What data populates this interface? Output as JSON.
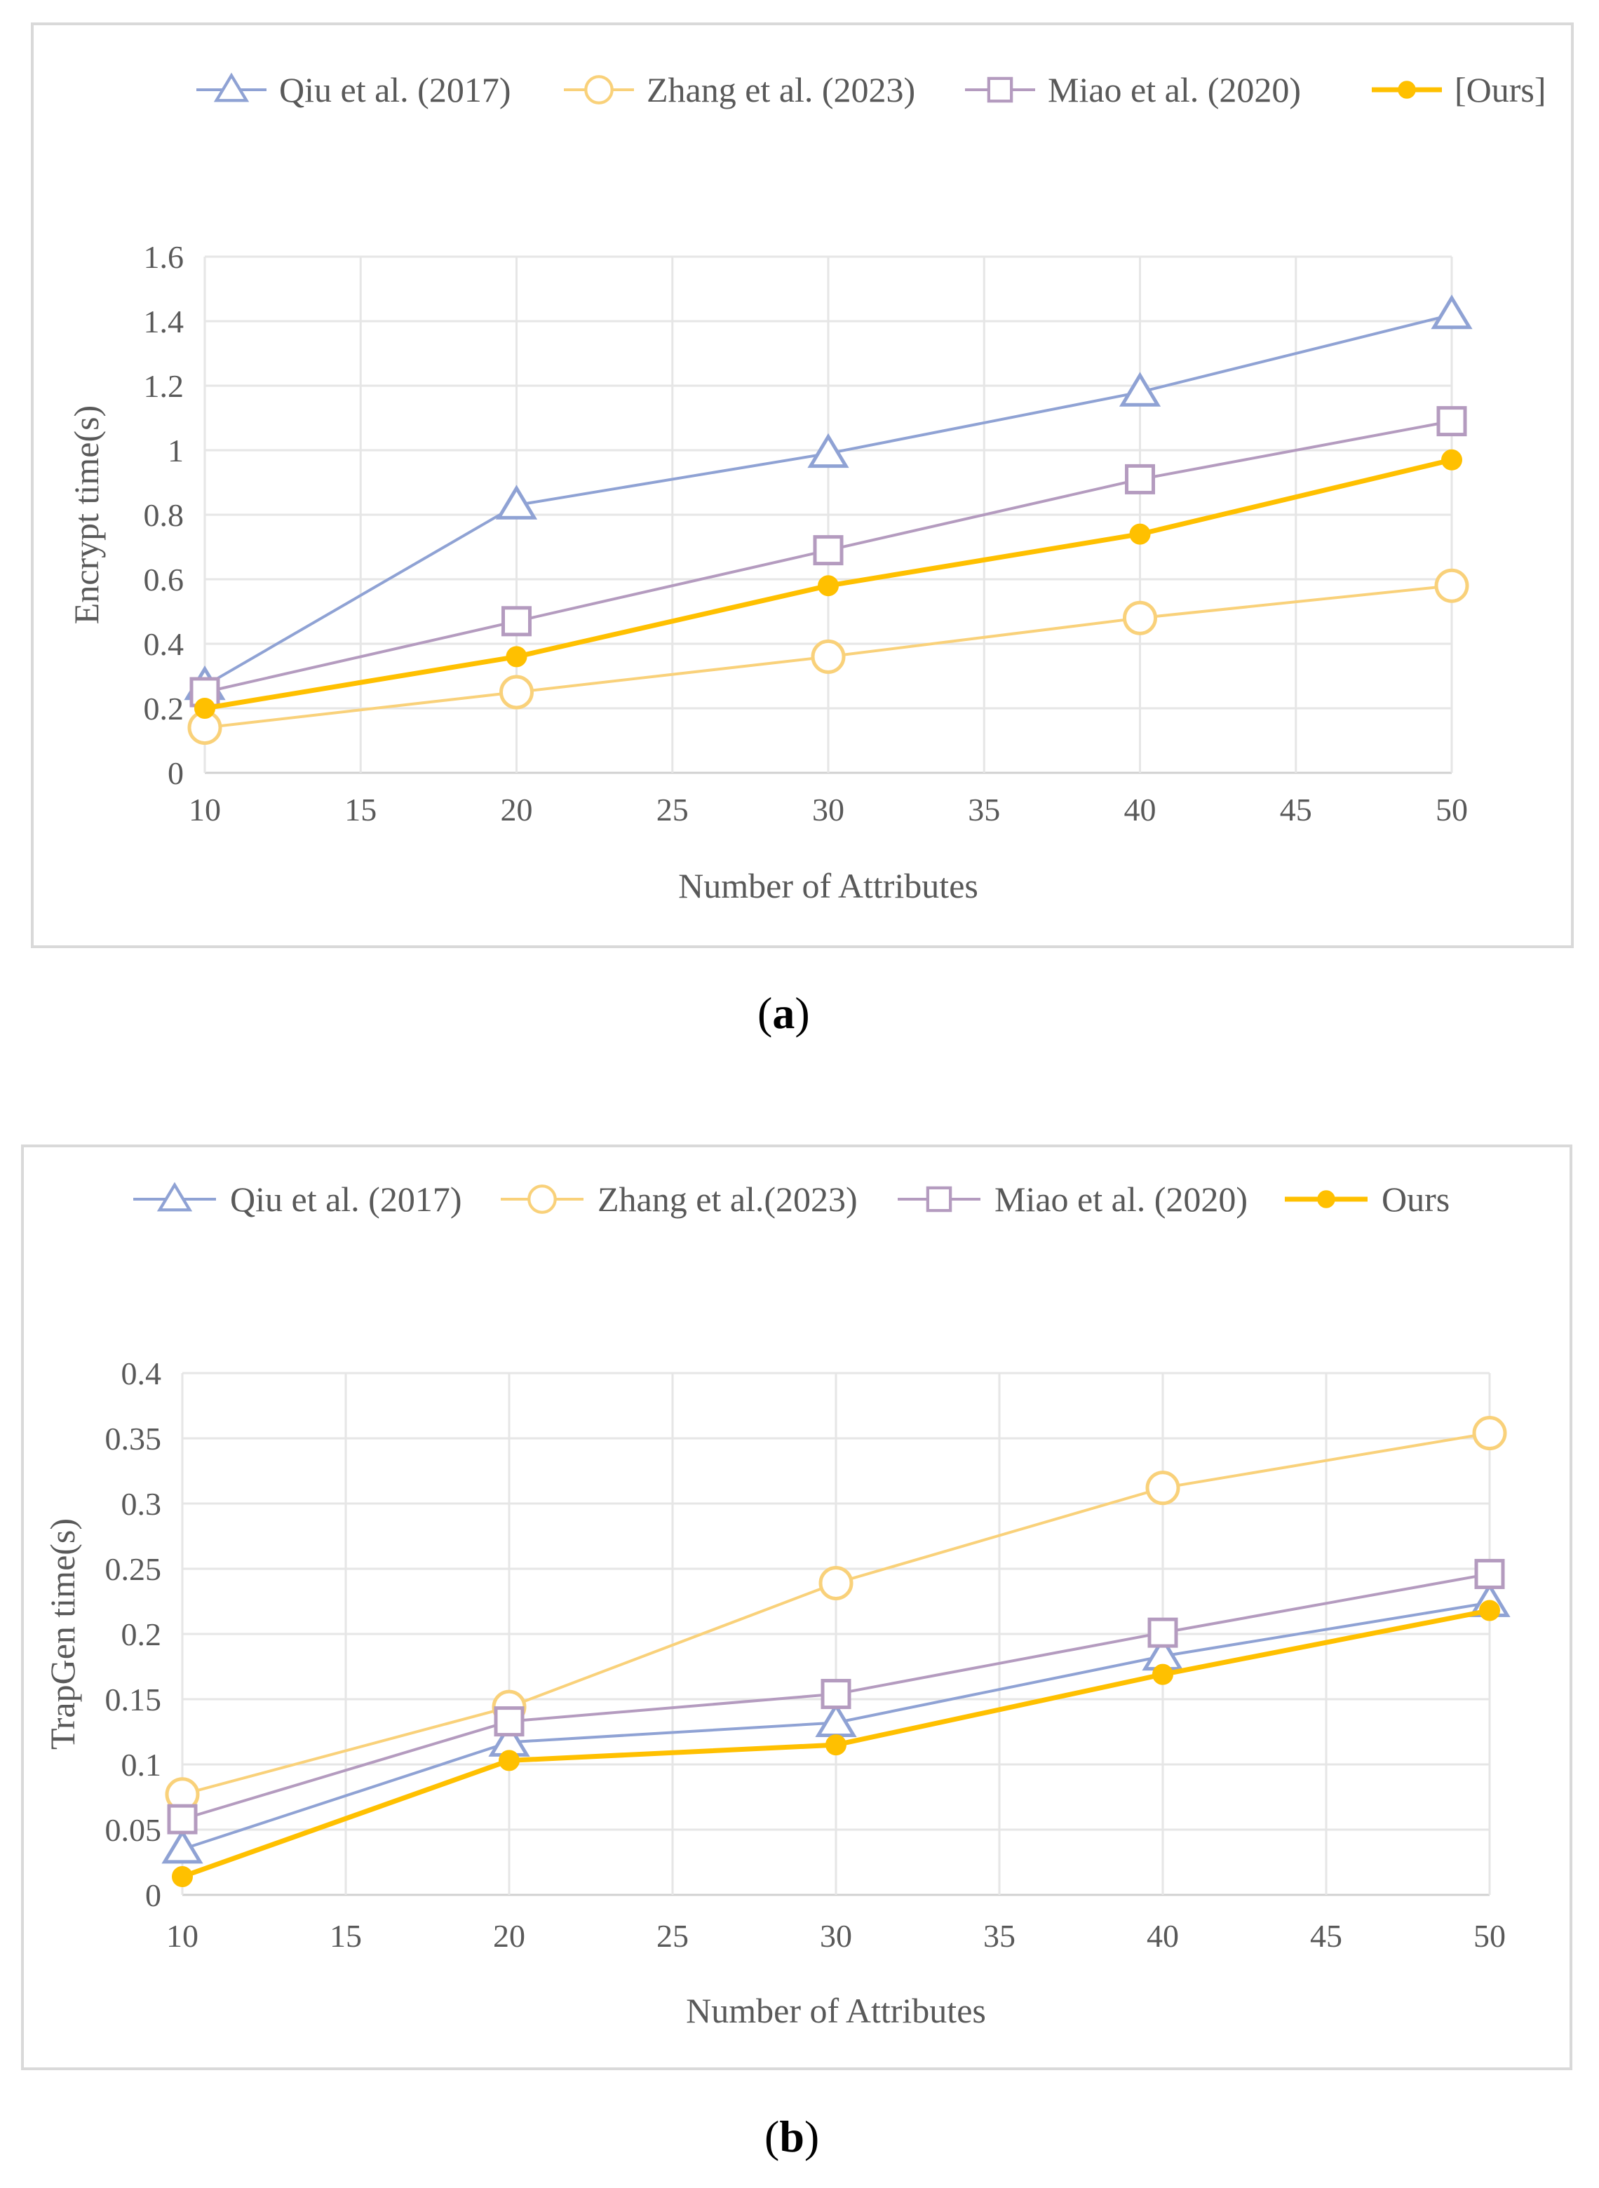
{
  "colors": {
    "qiu": "#8fa2d4",
    "zhang": "#f9d17a",
    "miao": "#b49bbf",
    "ours": "#ffc000",
    "grid": "#e6e6e6",
    "text": "#595959"
  },
  "chart_data": [
    {
      "type": "line",
      "caption_letter": "a",
      "title": "",
      "xlabel": "Number of Attributes",
      "ylabel": "Encrypt time(s)",
      "x": [
        10,
        20,
        30,
        40,
        50
      ],
      "xlim": [
        10,
        50
      ],
      "xticks": [
        "10",
        "15",
        "20",
        "25",
        "30",
        "35",
        "40",
        "45",
        "50"
      ],
      "xtick_values": [
        10,
        15,
        20,
        25,
        30,
        35,
        40,
        45,
        50
      ],
      "ylim": [
        0,
        1.6
      ],
      "yticks": [
        "0",
        "0.2",
        "0.4",
        "0.6",
        "0.8",
        "1",
        "1.2",
        "1.4",
        "1.6"
      ],
      "ytick_values": [
        0,
        0.2,
        0.4,
        0.6,
        0.8,
        1.0,
        1.2,
        1.4,
        1.6
      ],
      "grid": true,
      "legend_position": "top",
      "series": [
        {
          "key": "qiu",
          "name": "Qiu et al. (2017)",
          "marker": "triangle-open",
          "values": [
            0.27,
            0.83,
            0.99,
            1.18,
            1.42
          ]
        },
        {
          "key": "zhang",
          "name": "Zhang et al. (2023)",
          "marker": "circle-open",
          "values": [
            0.14,
            0.25,
            0.36,
            0.48,
            0.58
          ]
        },
        {
          "key": "miao",
          "name": "Miao et al. (2020)",
          "marker": "square-open",
          "values": [
            0.25,
            0.47,
            0.69,
            0.91,
            1.09
          ]
        },
        {
          "key": "ours",
          "name": "[Ours]",
          "marker": "circle-filled",
          "values": [
            0.2,
            0.36,
            0.58,
            0.74,
            0.97
          ]
        }
      ]
    },
    {
      "type": "line",
      "caption_letter": "b",
      "title": "",
      "xlabel": "Number of Attributes",
      "ylabel": "TrapGen time(s)",
      "x": [
        10,
        20,
        30,
        40,
        50
      ],
      "xlim": [
        10,
        50
      ],
      "xticks": [
        "10",
        "15",
        "20",
        "25",
        "30",
        "35",
        "40",
        "45",
        "50"
      ],
      "xtick_values": [
        10,
        15,
        20,
        25,
        30,
        35,
        40,
        45,
        50
      ],
      "ylim": [
        0,
        0.4
      ],
      "yticks": [
        "0",
        "0.05",
        "0.1",
        "0.15",
        "0.2",
        "0.25",
        "0.3",
        "0.35",
        "0.4"
      ],
      "ytick_values": [
        0,
        0.05,
        0.1,
        0.15,
        0.2,
        0.25,
        0.3,
        0.35,
        0.4
      ],
      "grid": true,
      "legend_position": "top",
      "series": [
        {
          "key": "qiu",
          "name": "Qiu et al. (2017)",
          "marker": "triangle-open",
          "values": [
            0.035,
            0.117,
            0.132,
            0.183,
            0.224
          ]
        },
        {
          "key": "zhang",
          "name": "Zhang et al.(2023)",
          "marker": "circle-open",
          "values": [
            0.077,
            0.144,
            0.239,
            0.312,
            0.354
          ]
        },
        {
          "key": "miao",
          "name": "Miao et al. (2020)",
          "marker": "square-open",
          "values": [
            0.058,
            0.133,
            0.154,
            0.201,
            0.246
          ]
        },
        {
          "key": "ours",
          "name": "Ours",
          "marker": "circle-filled",
          "values": [
            0.014,
            0.103,
            0.115,
            0.169,
            0.218
          ]
        }
      ]
    }
  ]
}
